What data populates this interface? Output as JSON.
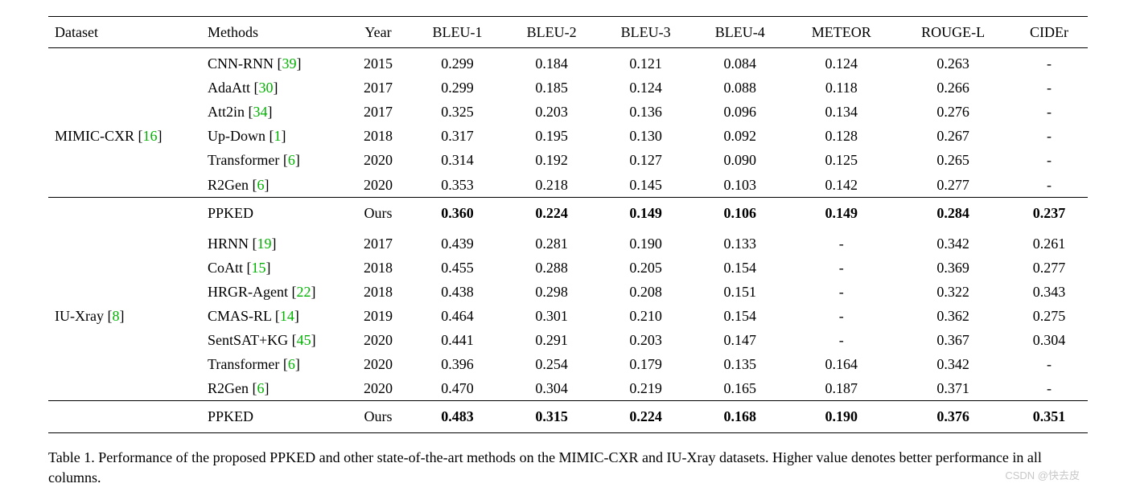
{
  "headers": [
    "Dataset",
    "Methods",
    "Year",
    "BLEU-1",
    "BLEU-2",
    "BLEU-3",
    "BLEU-4",
    "METEOR",
    "ROUGE-L",
    "CIDEr"
  ],
  "datasets": [
    {
      "name": "MIMIC-CXR",
      "name_cite": "16",
      "rows": [
        {
          "method": "CNN-RNN",
          "cite": "39",
          "year": "2015",
          "vals": [
            "0.299",
            "0.184",
            "0.121",
            "0.084",
            "0.124",
            "0.263",
            "-"
          ]
        },
        {
          "method": "AdaAtt",
          "cite": "30",
          "year": "2017",
          "vals": [
            "0.299",
            "0.185",
            "0.124",
            "0.088",
            "0.118",
            "0.266",
            "-"
          ]
        },
        {
          "method": "Att2in",
          "cite": "34",
          "year": "2017",
          "vals": [
            "0.325",
            "0.203",
            "0.136",
            "0.096",
            "0.134",
            "0.276",
            "-"
          ]
        },
        {
          "method": "Up-Down",
          "cite": "1",
          "year": "2018",
          "vals": [
            "0.317",
            "0.195",
            "0.130",
            "0.092",
            "0.128",
            "0.267",
            "-"
          ]
        },
        {
          "method": "Transformer",
          "cite": "6",
          "year": "2020",
          "vals": [
            "0.314",
            "0.192",
            "0.127",
            "0.090",
            "0.125",
            "0.265",
            "-"
          ]
        },
        {
          "method": "R2Gen",
          "cite": "6",
          "year": "2020",
          "vals": [
            "0.353",
            "0.218",
            "0.145",
            "0.103",
            "0.142",
            "0.277",
            "-"
          ]
        }
      ],
      "ppked": {
        "method": "PPKED",
        "year": "Ours",
        "vals": [
          "0.360",
          "0.224",
          "0.149",
          "0.106",
          "0.149",
          "0.284",
          "0.237"
        ]
      }
    },
    {
      "name": "IU-Xray",
      "name_cite": "8",
      "rows": [
        {
          "method": "HRNN",
          "cite": "19",
          "year": "2017",
          "vals": [
            "0.439",
            "0.281",
            "0.190",
            "0.133",
            "-",
            "0.342",
            "0.261"
          ]
        },
        {
          "method": "CoAtt",
          "cite": "15",
          "year": "2018",
          "vals": [
            "0.455",
            "0.288",
            "0.205",
            "0.154",
            "-",
            "0.369",
            "0.277"
          ]
        },
        {
          "method": "HRGR-Agent",
          "cite": "22",
          "year": "2018",
          "vals": [
            "0.438",
            "0.298",
            "0.208",
            "0.151",
            "-",
            "0.322",
            "0.343"
          ]
        },
        {
          "method": "CMAS-RL",
          "cite": "14",
          "year": "2019",
          "vals": [
            "0.464",
            "0.301",
            "0.210",
            "0.154",
            "-",
            "0.362",
            "0.275"
          ]
        },
        {
          "method": "SentSAT+KG",
          "cite": "45",
          "year": "2020",
          "vals": [
            "0.441",
            "0.291",
            "0.203",
            "0.147",
            "-",
            "0.367",
            "0.304"
          ]
        },
        {
          "method": "Transformer",
          "cite": "6",
          "year": "2020",
          "vals": [
            "0.396",
            "0.254",
            "0.179",
            "0.135",
            "0.164",
            "0.342",
            "-"
          ]
        },
        {
          "method": "R2Gen",
          "cite": "6",
          "year": "2020",
          "vals": [
            "0.470",
            "0.304",
            "0.219",
            "0.165",
            "0.187",
            "0.371",
            "-"
          ]
        }
      ],
      "ppked": {
        "method": "PPKED",
        "year": "Ours",
        "vals": [
          "0.483",
          "0.315",
          "0.224",
          "0.168",
          "0.190",
          "0.376",
          "0.351"
        ]
      }
    }
  ],
  "caption": "Table 1. Performance of the proposed PPKED and other state-of-the-art methods on the MIMIC-CXR and IU-Xray datasets. Higher value denotes better performance in all columns.",
  "watermark": "CSDN @快去皮",
  "colors": {
    "cite_color": "#00b300",
    "text_color": "#000000",
    "background": "#ffffff",
    "watermark_color": "#c8c8c8"
  },
  "typography": {
    "body_fontsize": 18,
    "caption_fontsize": 18,
    "font_family": "Times New Roman"
  }
}
